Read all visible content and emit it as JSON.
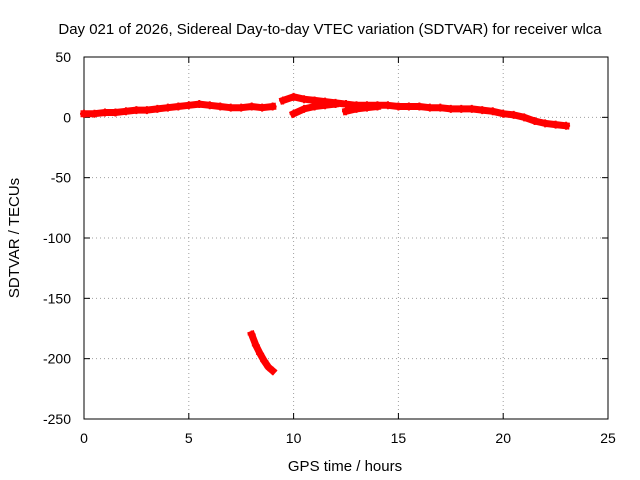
{
  "chart_data": {
    "type": "scatter",
    "title": "Day 021 of 2026, Sidereal Day-to-day VTEC variation (SDTVAR) for receiver wlca",
    "xlabel": "GPS time / hours",
    "ylabel": "SDTVAR / TECUs",
    "xlim": [
      0,
      25
    ],
    "ylim": [
      -250,
      50
    ],
    "x_ticks": [
      0,
      5,
      10,
      15,
      20,
      25
    ],
    "y_ticks": [
      50,
      0,
      -50,
      -100,
      -150,
      -200,
      -250
    ],
    "grid": true,
    "legend": "none",
    "series": [
      {
        "name": "SDTVAR",
        "color": "#ff0000",
        "segments": [
          {
            "x": [
              0.0,
              0.5,
              1.0,
              1.5,
              2.0,
              2.5,
              3.0,
              3.5,
              4.0,
              4.5,
              5.0,
              5.5,
              6.0,
              6.5,
              7.0,
              7.5,
              8.0,
              8.5,
              9.0
            ],
            "y": [
              3,
              3,
              4,
              4,
              5,
              6,
              6,
              7,
              8,
              9,
              10,
              11,
              10,
              9,
              8,
              8,
              9,
              8,
              9
            ]
          },
          {
            "x": [
              9.5,
              10.0,
              10.5,
              11.0,
              11.5,
              12.0,
              12.5,
              13.0,
              13.5,
              14.0,
              14.5,
              15.0,
              15.5,
              16.0,
              16.5,
              17.0,
              17.5,
              18.0,
              18.5,
              19.0,
              19.5,
              20.0,
              20.5,
              21.0,
              21.5,
              22.0,
              22.5,
              23.0
            ],
            "y": [
              14,
              17,
              15,
              14,
              13,
              12,
              11,
              10,
              10,
              10,
              10,
              9,
              9,
              9,
              8,
              8,
              7,
              7,
              7,
              6,
              5,
              3,
              2,
              0,
              -3,
              -5,
              -6,
              -7
            ]
          },
          {
            "x": [
              10.0,
              10.5,
              11.0,
              11.5,
              12.0
            ],
            "y": [
              3,
              7,
              9,
              10,
              11
            ]
          },
          {
            "x": [
              12.5,
              13.0,
              13.5,
              14.0
            ],
            "y": [
              5,
              7,
              8,
              9
            ]
          },
          {
            "x": [
              8.0,
              8.2,
              8.4,
              8.6,
              8.8,
              9.0
            ],
            "y": [
              -180,
              -189,
              -196,
              -202,
              -207,
              -210
            ]
          }
        ]
      }
    ]
  }
}
